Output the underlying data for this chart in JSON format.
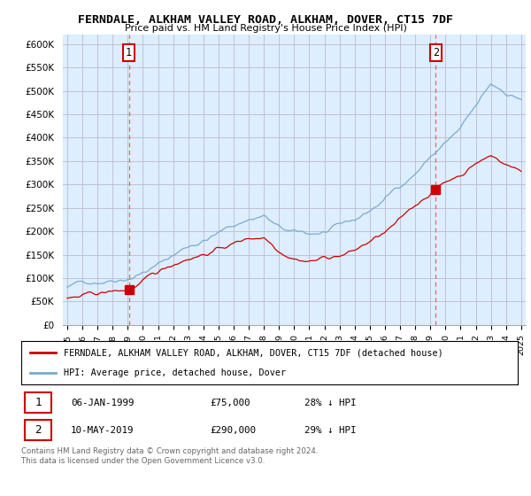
{
  "title": "FERNDALE, ALKHAM VALLEY ROAD, ALKHAM, DOVER, CT15 7DF",
  "subtitle": "Price paid vs. HM Land Registry's House Price Index (HPI)",
  "ylim": [
    0,
    620000
  ],
  "yticks": [
    0,
    50000,
    100000,
    150000,
    200000,
    250000,
    300000,
    350000,
    400000,
    450000,
    500000,
    550000,
    600000
  ],
  "ytick_labels": [
    "£0",
    "£50K",
    "£100K",
    "£150K",
    "£200K",
    "£250K",
    "£300K",
    "£350K",
    "£400K",
    "£450K",
    "£500K",
    "£550K",
    "£600K"
  ],
  "sale1_x": 4.08,
  "sale1_price": 75000,
  "sale2_x": 24.36,
  "sale2_price": 290000,
  "red_line_color": "#cc0000",
  "blue_line_color": "#7aabcf",
  "dashed_line_color": "#e05050",
  "background_color": "#ffffff",
  "plot_bg_color": "#ddeeff",
  "grid_color": "#bbbbcc",
  "legend1_label": "FERNDALE, ALKHAM VALLEY ROAD, ALKHAM, DOVER, CT15 7DF (detached house)",
  "legend2_label": "HPI: Average price, detached house, Dover",
  "footer": "Contains HM Land Registry data © Crown copyright and database right 2024.\nThis data is licensed under the Open Government Licence v3.0.",
  "xtick_labels": [
    "1995",
    "1996",
    "1997",
    "1998",
    "1999",
    "2000",
    "2001",
    "2002",
    "2003",
    "2004",
    "2005",
    "2006",
    "2007",
    "2008",
    "2009",
    "2010",
    "2011",
    "2012",
    "2013",
    "2014",
    "2015",
    "2016",
    "2017",
    "2018",
    "2019",
    "2020",
    "2021",
    "2022",
    "2023",
    "2024",
    "2025"
  ]
}
